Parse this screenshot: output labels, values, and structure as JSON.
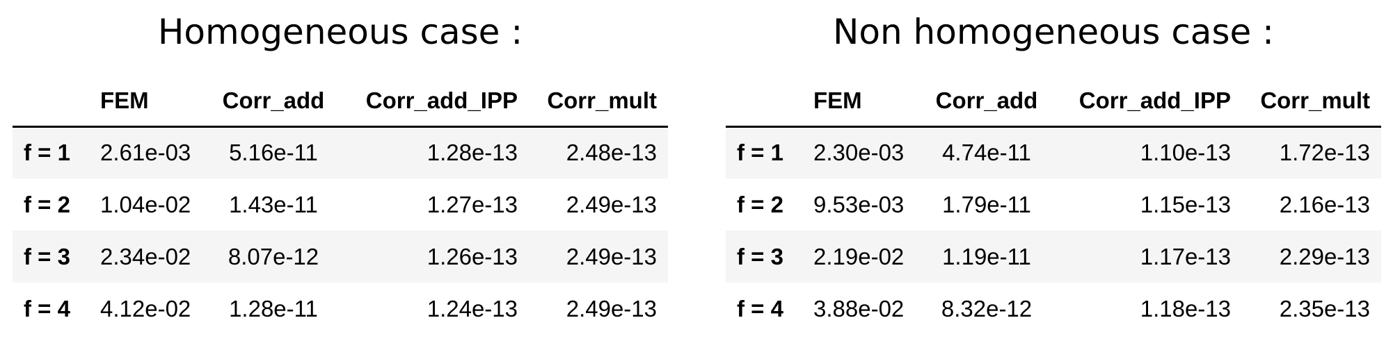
{
  "tables": [
    {
      "title": "Homogeneous case :",
      "columns": [
        "",
        "FEM",
        "Corr_add",
        "Corr_add_IPP",
        "Corr_mult"
      ],
      "rows": [
        {
          "label": "f = 1",
          "values": [
            "2.61e-03",
            "5.16e-11",
            "1.28e-13",
            "2.48e-13"
          ]
        },
        {
          "label": "f = 2",
          "values": [
            "1.04e-02",
            "1.43e-11",
            "1.27e-13",
            "2.49e-13"
          ]
        },
        {
          "label": "f = 3",
          "values": [
            "2.34e-02",
            "8.07e-12",
            "1.26e-13",
            "2.49e-13"
          ]
        },
        {
          "label": "f = 4",
          "values": [
            "4.12e-02",
            "1.28e-11",
            "1.24e-13",
            "2.49e-13"
          ]
        }
      ]
    },
    {
      "title": "Non homogeneous case :",
      "columns": [
        "",
        "FEM",
        "Corr_add",
        "Corr_add_IPP",
        "Corr_mult"
      ],
      "rows": [
        {
          "label": "f = 1",
          "values": [
            "2.30e-03",
            "4.74e-11",
            "1.10e-13",
            "1.72e-13"
          ]
        },
        {
          "label": "f = 2",
          "values": [
            "9.53e-03",
            "1.79e-11",
            "1.15e-13",
            "2.16e-13"
          ]
        },
        {
          "label": "f = 3",
          "values": [
            "2.19e-02",
            "1.19e-11",
            "1.17e-13",
            "2.29e-13"
          ]
        },
        {
          "label": "f = 4",
          "values": [
            "3.88e-02",
            "8.32e-12",
            "1.18e-13",
            "2.35e-13"
          ]
        }
      ]
    }
  ]
}
